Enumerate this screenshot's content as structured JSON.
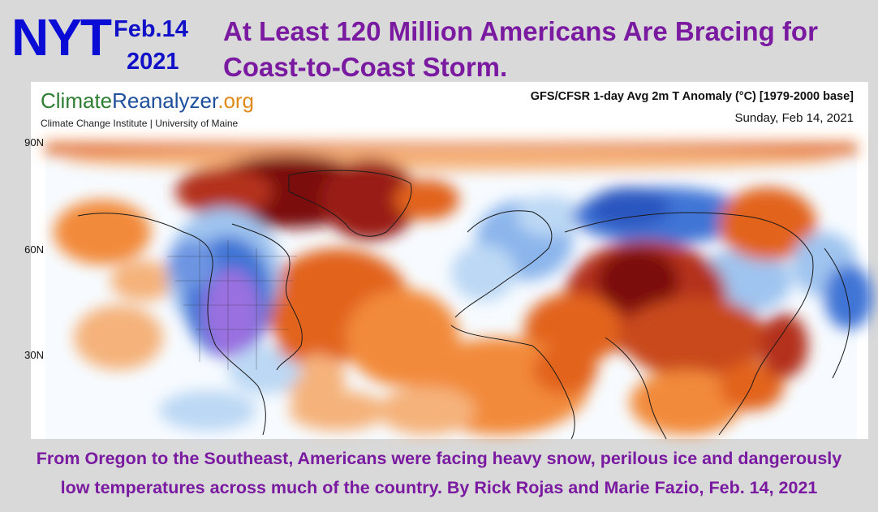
{
  "header": {
    "source": "NYT",
    "date_line1": "Feb.14",
    "date_line2": "2021",
    "headline_line1": "At Least 120 Million Americans Are Bracing for",
    "headline_line2": "Coast-to-Coast Storm."
  },
  "map": {
    "logo_part1": "Climate",
    "logo_part2": "Reanalyzer",
    "logo_part3": ".org",
    "logo_subtitle": "Climate Change Institute | University of Maine",
    "title": "GFS/CFSR 1-day Avg 2m T Anomaly (°C) [1979-2000 base]",
    "date": "Sunday, Feb 14, 2021",
    "latitude_labels": [
      "90N",
      "60N",
      "30N"
    ],
    "colors": {
      "warm_dark": "#7b0f0f",
      "warm": "#e2631f",
      "warm_light": "#f5b27a",
      "neutral": "#ffffff",
      "cool_light": "#bcd8f4",
      "cool": "#3f74d6",
      "cold_purple": "#9a6fe0"
    }
  },
  "caption": {
    "line1": "From Oregon to the Southeast, Americans were facing heavy snow, perilous ice and dangerously",
    "line2": "low temperatures across much of the country. By Rick Rojas and Marie Fazio, Feb. 14, 2021"
  }
}
